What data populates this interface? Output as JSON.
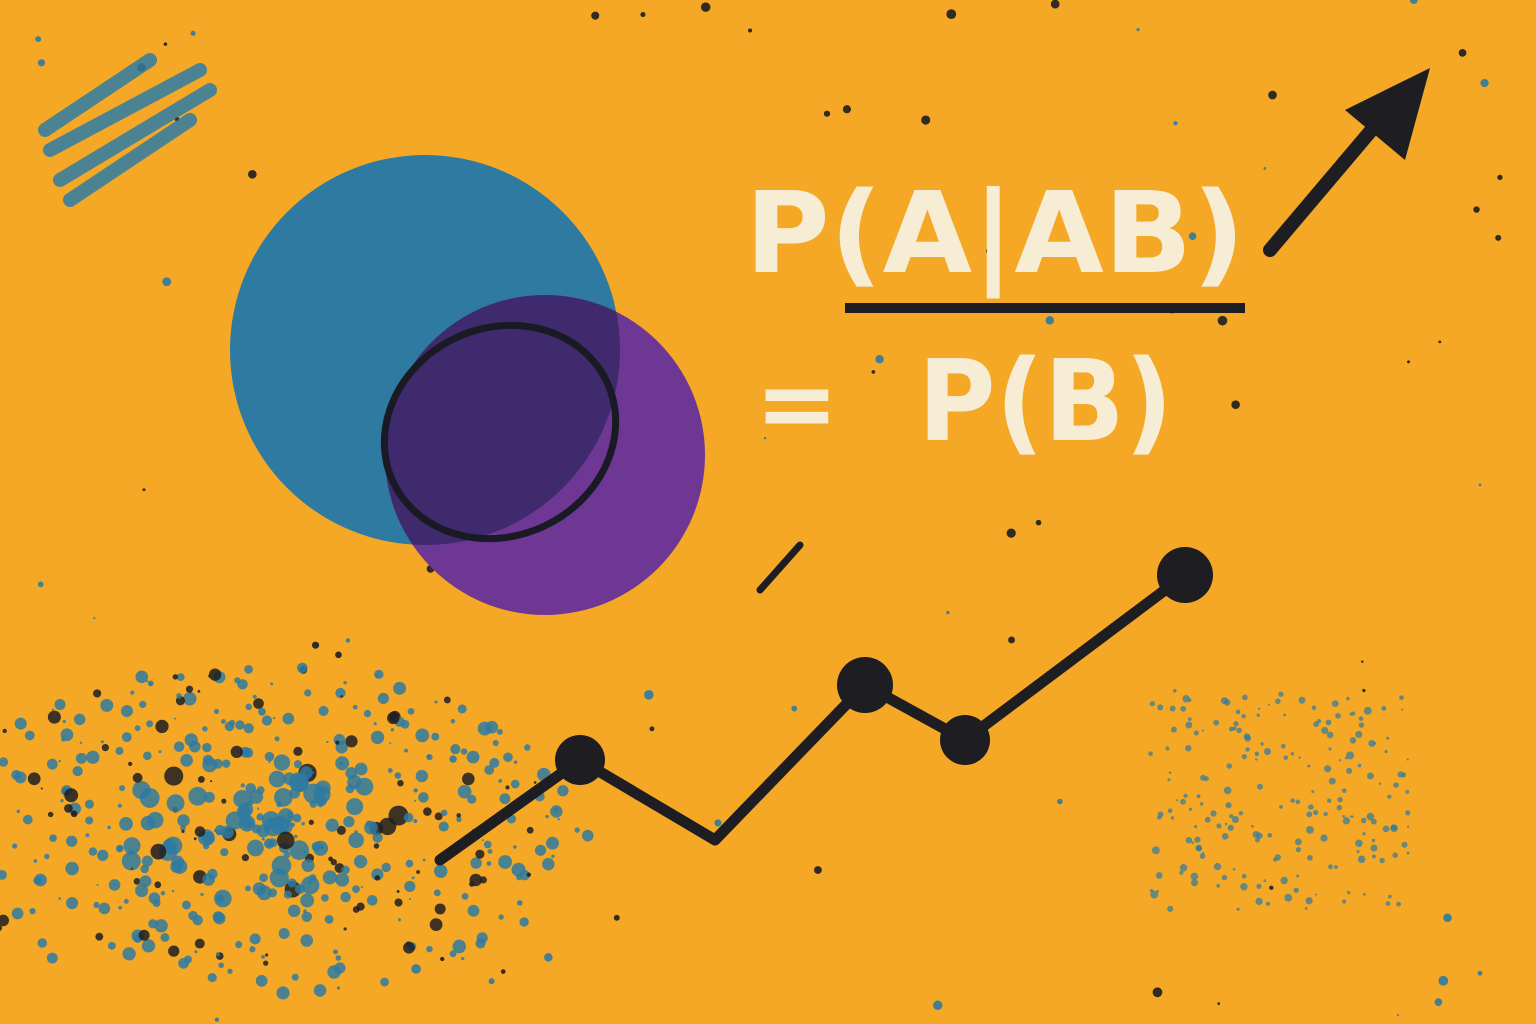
{
  "formula": {
    "numerator": "P(A|AB)",
    "equals": "=",
    "denominator": "P(B)"
  }
}
